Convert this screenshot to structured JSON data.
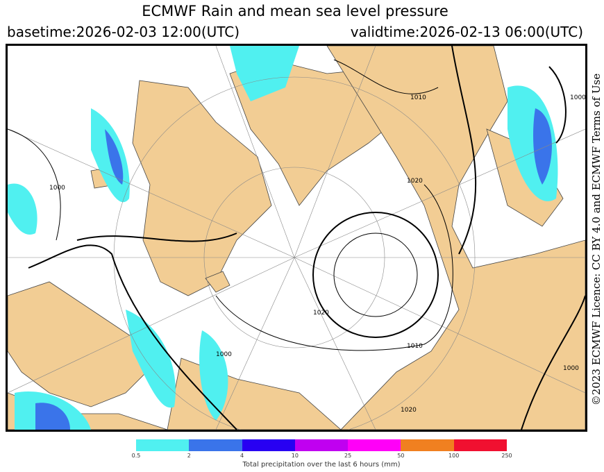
{
  "title": "ECMWF Rain and mean sea level pressure",
  "basetime": "basetime:2026-02-03 12:00(UTC)",
  "validtime": "validtime:2026-02-13 06:00(UTC)",
  "licence": "©2023 ECMWF Licence: CC BY 4.0 and ECMWF Terms of Use",
  "colors": {
    "land": "#f2cd94",
    "ocean": "#ffffff"
  },
  "isobar_labels": [
    "1020",
    "1010",
    "1000",
    "1000",
    "1020",
    "1010",
    "1000",
    "1020",
    "1000"
  ],
  "legend": {
    "caption": "Total precipitation over the last 6 hours (mm)",
    "ticks": [
      "0.5",
      "2",
      "4",
      "10",
      "25",
      "50",
      "100",
      "250"
    ],
    "colors": [
      "#50f0f0",
      "#3a74ea",
      "#2800f2",
      "#c000f0",
      "#ff00f8",
      "#f08020",
      "#f01030"
    ]
  }
}
